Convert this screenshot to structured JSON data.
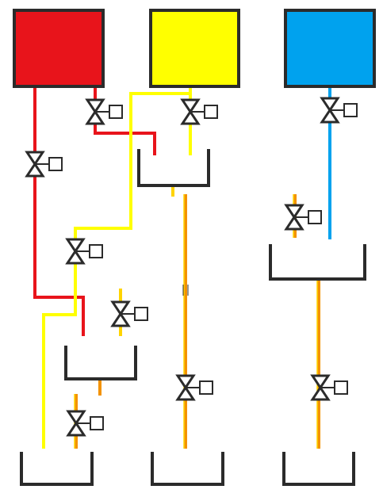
{
  "colors": {
    "red": "#e8141b",
    "yellow": "#ffff00",
    "blue": "#00a2ee",
    "orange": "#f39200",
    "outline": "#2b2b2b",
    "valve_fill": "#ffffff"
  },
  "tanks": [
    {
      "id": "tank-red",
      "color": "red"
    },
    {
      "id": "tank-yellow",
      "color": "yellow"
    },
    {
      "id": "tank-blue",
      "color": "blue"
    }
  ],
  "basins": [
    {
      "id": "basin-mix-center"
    },
    {
      "id": "basin-blue"
    },
    {
      "id": "basin-mix-left"
    },
    {
      "id": "basin-out-left"
    },
    {
      "id": "basin-out-middle"
    },
    {
      "id": "basin-out-right"
    }
  ],
  "valves": [
    {
      "id": "valve-red-top"
    },
    {
      "id": "valve-yellow-top"
    },
    {
      "id": "valve-blue-top"
    },
    {
      "id": "valve-red-left"
    },
    {
      "id": "valve-orange-right"
    },
    {
      "id": "valve-yellow-left"
    },
    {
      "id": "valve-yellow-mid"
    },
    {
      "id": "valve-orange-middle"
    },
    {
      "id": "valve-orange-far-right"
    },
    {
      "id": "valve-orange-bottom-left"
    }
  ]
}
